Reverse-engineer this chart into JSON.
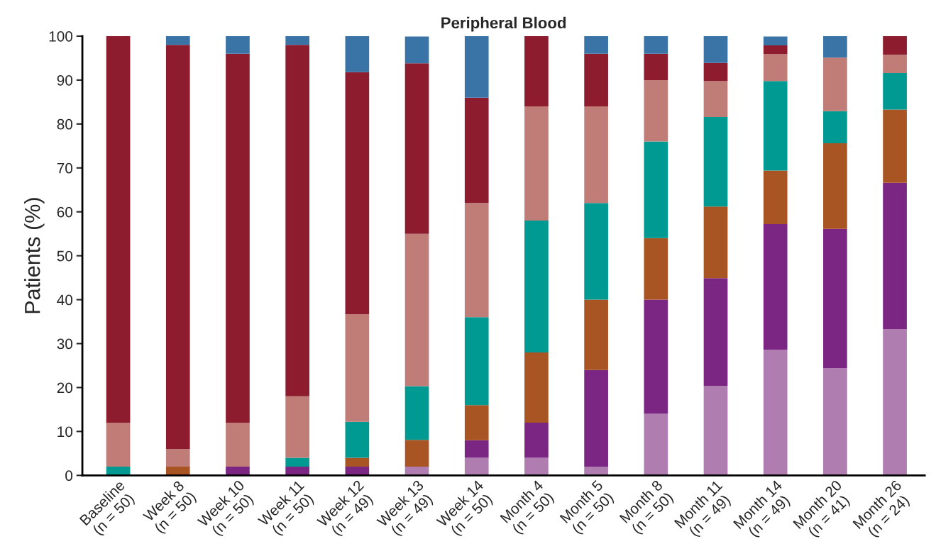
{
  "chart_data": {
    "type": "bar",
    "title": "Peripheral Blood",
    "ylabel": "Patients (%)",
    "stacked": true,
    "categories": [
      "Baseline\n(n = 50)",
      "Week 8\n(n = 50)",
      "Week 10\n(n = 50)",
      "Week 11\n(n = 50)",
      "Week 12\n(n = 49)",
      "Week 13\n(n = 49)",
      "Week 14\n(n = 50)",
      "Month 4\n(n = 50)",
      "Month 5\n(n = 50)",
      "Month 8\n(n = 50)",
      "Month 11\n(n = 49)",
      "Month 14\n(n = 49)",
      "Month 20\n(n = 41)",
      "Month 26\n(n = 24)"
    ],
    "series": [
      {
        "color": "#b07db0",
        "values": [
          0,
          0,
          0,
          0,
          0,
          2,
          4,
          4,
          2,
          14,
          20.4,
          28.6,
          24.4,
          33.3
        ]
      },
      {
        "color": "#7b2682",
        "values": [
          0,
          0,
          2,
          2,
          2,
          0,
          4,
          8,
          22,
          26,
          24.5,
          28.6,
          31.7,
          33.3
        ]
      },
      {
        "color": "#a95523",
        "values": [
          0,
          2,
          0,
          0,
          2,
          6.1,
          8,
          16,
          16,
          14,
          16.3,
          12.2,
          19.5,
          16.7
        ]
      },
      {
        "color": "#009a93",
        "values": [
          2,
          0,
          0,
          2,
          8.2,
          12.2,
          20,
          30,
          22,
          22,
          20.4,
          20.4,
          7.3,
          8.3
        ]
      },
      {
        "color": "#c07d78",
        "values": [
          10,
          4,
          10,
          14,
          24.5,
          34.7,
          26,
          26,
          22,
          14,
          8.2,
          6.1,
          12.2,
          4.2
        ]
      },
      {
        "color": "#8c1c2e",
        "values": [
          88,
          92,
          84,
          80,
          55.1,
          38.8,
          24,
          16,
          12,
          6,
          4.1,
          2,
          0,
          4.2
        ]
      },
      {
        "color": "#3a73a6",
        "values": [
          0,
          2,
          4,
          2,
          8.2,
          6.1,
          14,
          0,
          4,
          4,
          6.1,
          2,
          4.9,
          0
        ]
      }
    ],
    "ylim": [
      0,
      100
    ],
    "yticks": [
      0,
      10,
      20,
      30,
      40,
      50,
      60,
      70,
      80,
      90,
      100
    ],
    "grid": false,
    "legend": false
  }
}
